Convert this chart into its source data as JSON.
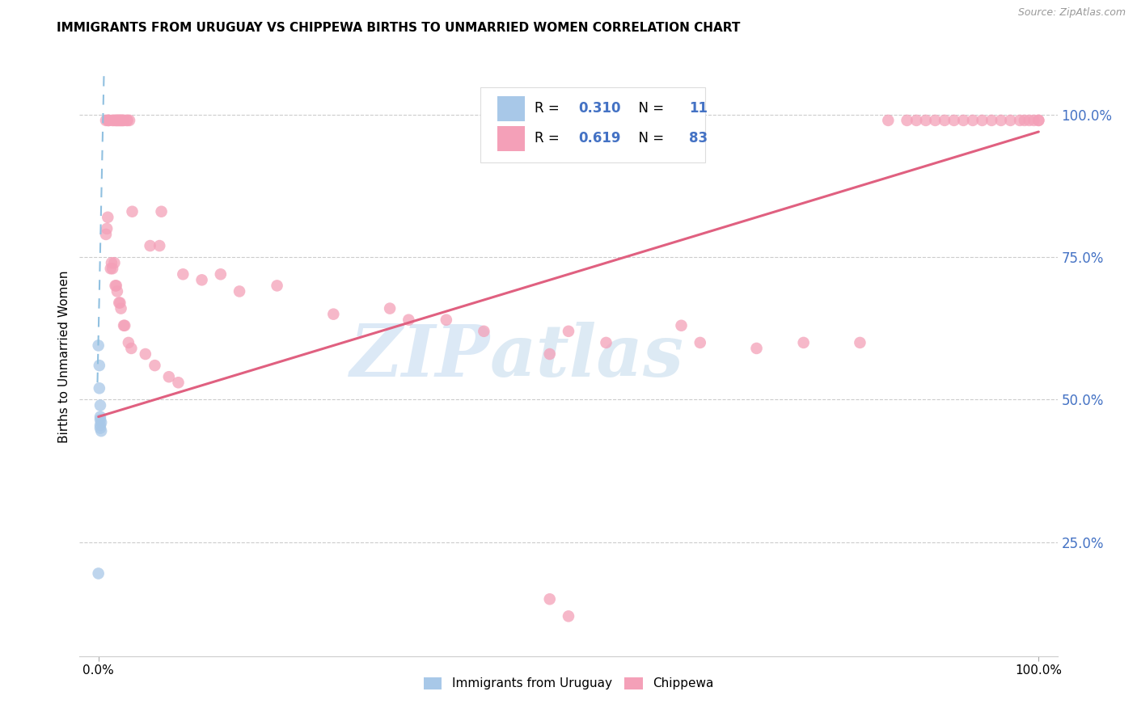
{
  "title": "IMMIGRANTS FROM URUGUAY VS CHIPPEWA BIRTHS TO UNMARRIED WOMEN CORRELATION CHART",
  "source": "Source: ZipAtlas.com",
  "ylabel": "Births to Unmarried Women",
  "y_tick_labels": [
    "25.0%",
    "50.0%",
    "75.0%",
    "100.0%"
  ],
  "y_tick_positions": [
    0.25,
    0.5,
    0.75,
    1.0
  ],
  "legend_label_1": "Immigrants from Uruguay",
  "legend_label_2": "Chippewa",
  "R1": "0.310",
  "N1": "11",
  "R2": "0.619",
  "N2": "83",
  "color_blue": "#a8c8e8",
  "color_pink": "#f4a0b8",
  "color_blue_text": "#4472c4",
  "watermark_zip": "ZIP",
  "watermark_atlas": "atlas",
  "blue_points_x": [
    0.0,
    0.001,
    0.001,
    0.002,
    0.002,
    0.002,
    0.002,
    0.002,
    0.003,
    0.003,
    0.0
  ],
  "blue_points_y": [
    0.595,
    0.56,
    0.52,
    0.49,
    0.47,
    0.465,
    0.455,
    0.45,
    0.46,
    0.445,
    0.195
  ],
  "blue_trend_x": [
    -0.001,
    0.006
  ],
  "blue_trend_y": [
    0.53,
    1.08
  ],
  "pink_trend_x": [
    0.0,
    1.0
  ],
  "pink_trend_y": [
    0.47,
    0.97
  ],
  "pink_points_x": [
    0.008,
    0.01,
    0.011,
    0.011,
    0.015,
    0.016,
    0.018,
    0.019,
    0.02,
    0.021,
    0.022,
    0.023,
    0.024,
    0.025,
    0.026,
    0.027,
    0.03,
    0.031,
    0.033,
    0.036,
    0.055,
    0.065,
    0.067,
    0.09,
    0.11,
    0.13,
    0.15,
    0.19,
    0.25,
    0.31,
    0.33,
    0.37,
    0.41,
    0.48,
    0.5,
    0.54,
    0.62,
    0.64,
    0.7,
    0.75,
    0.81,
    0.84,
    0.86,
    0.87,
    0.88,
    0.89,
    0.9,
    0.91,
    0.92,
    0.93,
    0.94,
    0.95,
    0.96,
    0.97,
    0.98,
    0.985,
    0.99,
    0.995,
    1.0,
    1.0,
    0.008,
    0.009,
    0.01,
    0.013,
    0.014,
    0.015,
    0.017,
    0.018,
    0.019,
    0.02,
    0.022,
    0.023,
    0.024,
    0.027,
    0.028,
    0.032,
    0.035,
    0.05,
    0.06,
    0.075,
    0.085,
    0.48,
    0.5
  ],
  "pink_points_y": [
    0.99,
    0.99,
    0.99,
    0.99,
    0.99,
    0.99,
    0.99,
    0.99,
    0.99,
    0.99,
    0.99,
    0.99,
    0.99,
    0.99,
    0.99,
    0.99,
    0.99,
    0.99,
    0.99,
    0.83,
    0.77,
    0.77,
    0.83,
    0.72,
    0.71,
    0.72,
    0.69,
    0.7,
    0.65,
    0.66,
    0.64,
    0.64,
    0.62,
    0.58,
    0.62,
    0.6,
    0.63,
    0.6,
    0.59,
    0.6,
    0.6,
    0.99,
    0.99,
    0.99,
    0.99,
    0.99,
    0.99,
    0.99,
    0.99,
    0.99,
    0.99,
    0.99,
    0.99,
    0.99,
    0.99,
    0.99,
    0.99,
    0.99,
    0.99,
    0.99,
    0.79,
    0.8,
    0.82,
    0.73,
    0.74,
    0.73,
    0.74,
    0.7,
    0.7,
    0.69,
    0.67,
    0.67,
    0.66,
    0.63,
    0.63,
    0.6,
    0.59,
    0.58,
    0.56,
    0.54,
    0.53,
    0.15,
    0.12
  ],
  "xlim": [
    -0.02,
    1.02
  ],
  "ylim": [
    0.05,
    1.1
  ]
}
